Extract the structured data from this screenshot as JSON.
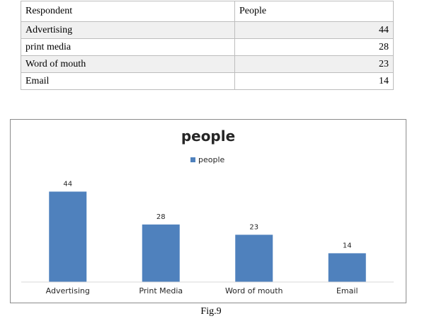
{
  "table": {
    "headers": [
      "Respondent",
      "People"
    ],
    "rows": [
      {
        "label": "Advertising",
        "value": "44"
      },
      {
        "label": "print media",
        "value": "28"
      },
      {
        "label": "Word of mouth",
        "value": "23"
      },
      {
        "label": "Email",
        "value": "14"
      }
    ]
  },
  "chart_data": {
    "type": "bar",
    "title": "people",
    "legend": "people",
    "legend_position": "top",
    "categories": [
      "Advertising",
      "Print Media",
      "Word of mouth",
      "Email"
    ],
    "series": [
      {
        "name": "people",
        "values": [
          44,
          28,
          23,
          14
        ]
      }
    ],
    "bar_color": "#4f81bd",
    "ylim": [
      0,
      50
    ],
    "grid": false
  },
  "caption": "Fig.9"
}
